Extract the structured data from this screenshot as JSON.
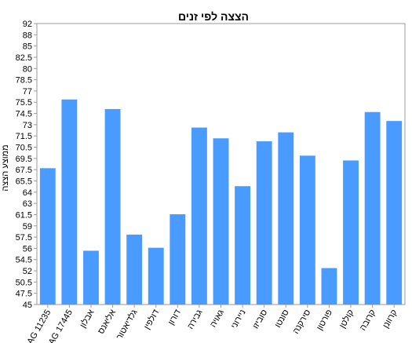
{
  "chart_data": {
    "type": "bar",
    "title": "הצצה לפי זנים",
    "xlabel": "",
    "ylabel": "ממוצע הצצה",
    "categories": [
      "AG 11235",
      "AG 17445",
      "אבלון",
      "אליאנס",
      "גלדיאטור",
      "דולפין",
      "דורון",
      "גבירה",
      "גאויה",
      "ניירוני",
      "סוביזו",
      "סונטו",
      "סירקנה",
      "פורטון",
      "קולטן",
      "קרובה",
      "קרוונן"
    ],
    "values": [
      67.8,
      79.3,
      54.0,
      77.7,
      56.7,
      54.5,
      60.1,
      74.6,
      72.8,
      64.8,
      72.3,
      73.8,
      69.9,
      51.1,
      69.1,
      77.2,
      75.7
    ],
    "yticks": [
      "45",
      "47.5",
      "50.5",
      "52",
      "54.5",
      "56",
      "57.5",
      "59",
      "61.5",
      "63",
      "64",
      "65.5",
      "67.5",
      "69.5",
      "70.5",
      "71.5",
      "73",
      "74.5",
      "75.5",
      "77",
      "78.5",
      "80",
      "82.5",
      "85",
      "88",
      "92"
    ],
    "ylim": [
      45,
      92
    ],
    "bar_color": "#4a9bff",
    "grid": false,
    "legend": "none"
  }
}
